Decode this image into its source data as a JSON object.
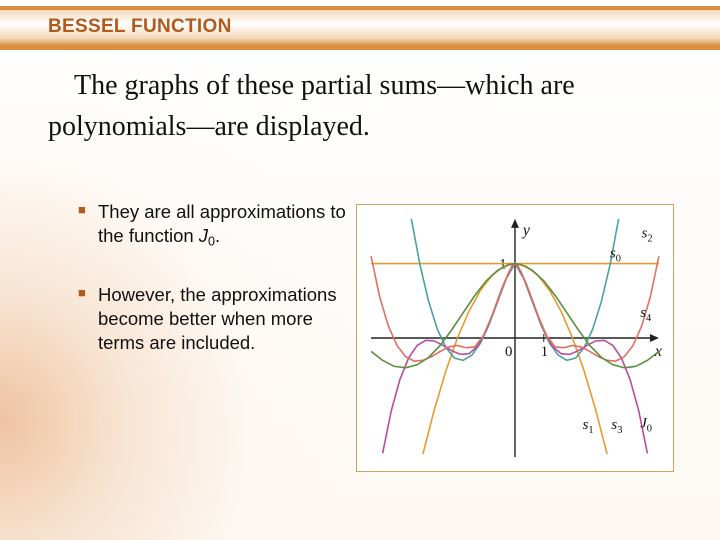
{
  "header": {
    "title": "BESSEL FUNCTION"
  },
  "lead": {
    "text": "The graphs of these partial sums—which are polynomials—are displayed."
  },
  "bullets": [
    {
      "pre": "They are all approximations to the function ",
      "sym": "J",
      "sub": "0",
      "post": "."
    },
    {
      "pre": "However, the approximations become better when more terms are included.",
      "sym": "",
      "sub": "",
      "post": ""
    }
  ],
  "chart": {
    "type": "line",
    "background_color": "#ffffff",
    "frame_border_color": "#d0a060",
    "axis_color": "#222222",
    "xlim": [
      -5,
      5
    ],
    "ylim": [
      -1.6,
      1.6
    ],
    "xtick_labels": [
      {
        "v": 0,
        "label": "0"
      },
      {
        "v": 1,
        "label": "1"
      }
    ],
    "ytick_labels": [
      {
        "v": 1,
        "label": "1"
      }
    ],
    "y_axis_label": "y",
    "x_axis_label": "x",
    "line_width": 1.6,
    "series": [
      {
        "name": "s0",
        "color": "#e69a2f",
        "label_pos": "tr-upper",
        "points": [
          [
            -5,
            1
          ],
          [
            -4,
            1
          ],
          [
            -3,
            1
          ],
          [
            -2,
            1
          ],
          [
            -1,
            1
          ],
          [
            0,
            1
          ],
          [
            1,
            1
          ],
          [
            2,
            1
          ],
          [
            3,
            1
          ],
          [
            4,
            1
          ],
          [
            5,
            1
          ]
        ]
      },
      {
        "name": "s1",
        "color": "#e69a2f",
        "label_pos": "bl",
        "points": [
          [
            -3.2,
            -1.56
          ],
          [
            -2.8,
            -0.96
          ],
          [
            -2.4,
            -0.44
          ],
          [
            -2.0,
            0.0
          ],
          [
            -1.6,
            0.36
          ],
          [
            -1.2,
            0.64
          ],
          [
            -0.8,
            0.84
          ],
          [
            -0.4,
            0.96
          ],
          [
            0,
            1.0
          ],
          [
            0.4,
            0.96
          ],
          [
            0.8,
            0.84
          ],
          [
            1.2,
            0.64
          ],
          [
            1.6,
            0.36
          ],
          [
            2.0,
            0.0
          ],
          [
            2.4,
            -0.44
          ],
          [
            2.8,
            -0.96
          ],
          [
            3.2,
            -1.56
          ]
        ]
      },
      {
        "name": "s2",
        "color": "#4aa0a0",
        "label_pos": "tr",
        "points": [
          [
            -3.6,
            1.6
          ],
          [
            -3.3,
            0.98
          ],
          [
            -3.0,
            0.49
          ],
          [
            -2.7,
            0.12
          ],
          [
            -2.4,
            -0.13
          ],
          [
            -2.1,
            -0.27
          ],
          [
            -1.8,
            -0.3
          ],
          [
            -1.5,
            -0.23
          ],
          [
            -1.2,
            -0.07
          ],
          [
            -0.9,
            0.18
          ],
          [
            -0.6,
            0.49
          ],
          [
            -0.3,
            0.8
          ],
          [
            0,
            1.0
          ],
          [
            0.3,
            0.8
          ],
          [
            0.6,
            0.49
          ],
          [
            0.9,
            0.18
          ],
          [
            1.2,
            -0.07
          ],
          [
            1.5,
            -0.23
          ],
          [
            1.8,
            -0.3
          ],
          [
            2.1,
            -0.27
          ],
          [
            2.4,
            -0.13
          ],
          [
            2.7,
            0.12
          ],
          [
            3.0,
            0.49
          ],
          [
            3.3,
            0.98
          ],
          [
            3.6,
            1.6
          ]
        ]
      },
      {
        "name": "s3",
        "color": "#b94aa0",
        "label_pos": "br-inner",
        "points": [
          [
            -4.6,
            -1.55
          ],
          [
            -4.3,
            -0.98
          ],
          [
            -4.0,
            -0.56
          ],
          [
            -3.7,
            -0.27
          ],
          [
            -3.4,
            -0.1
          ],
          [
            -3.1,
            -0.03
          ],
          [
            -2.8,
            -0.04
          ],
          [
            -2.5,
            -0.1
          ],
          [
            -2.2,
            -0.17
          ],
          [
            -1.9,
            -0.22
          ],
          [
            -1.6,
            -0.21
          ],
          [
            -1.3,
            -0.11
          ],
          [
            -1.0,
            0.1
          ],
          [
            -0.7,
            0.4
          ],
          [
            -0.4,
            0.72
          ],
          [
            -0.1,
            0.97
          ],
          [
            0,
            1.0
          ],
          [
            0.1,
            0.97
          ],
          [
            0.4,
            0.72
          ],
          [
            0.7,
            0.4
          ],
          [
            1.0,
            0.1
          ],
          [
            1.3,
            -0.11
          ],
          [
            1.6,
            -0.21
          ],
          [
            1.9,
            -0.22
          ],
          [
            2.2,
            -0.17
          ],
          [
            2.5,
            -0.1
          ],
          [
            2.8,
            -0.04
          ],
          [
            3.1,
            -0.03
          ],
          [
            3.4,
            -0.1
          ],
          [
            3.7,
            -0.27
          ],
          [
            4.0,
            -0.56
          ],
          [
            4.3,
            -0.98
          ],
          [
            4.6,
            -1.55
          ]
        ]
      },
      {
        "name": "s4",
        "color": "#df6f5f",
        "label_pos": "r-mid",
        "points": [
          [
            -5,
            1.1
          ],
          [
            -4.7,
            0.55
          ],
          [
            -4.4,
            0.16
          ],
          [
            -4.1,
            -0.1
          ],
          [
            -3.8,
            -0.25
          ],
          [
            -3.5,
            -0.31
          ],
          [
            -3.2,
            -0.3
          ],
          [
            -2.9,
            -0.25
          ],
          [
            -2.6,
            -0.18
          ],
          [
            -2.3,
            -0.12
          ],
          [
            -2.0,
            -0.1
          ],
          [
            -1.7,
            -0.13
          ],
          [
            -1.4,
            -0.12
          ],
          [
            -1.1,
            0.03
          ],
          [
            -0.8,
            0.3
          ],
          [
            -0.5,
            0.62
          ],
          [
            -0.2,
            0.9
          ],
          [
            0,
            1.0
          ],
          [
            0.2,
            0.9
          ],
          [
            0.5,
            0.62
          ],
          [
            0.8,
            0.3
          ],
          [
            1.1,
            0.03
          ],
          [
            1.4,
            -0.12
          ],
          [
            1.7,
            -0.13
          ],
          [
            2.0,
            -0.1
          ],
          [
            2.3,
            -0.12
          ],
          [
            2.6,
            -0.18
          ],
          [
            2.9,
            -0.25
          ],
          [
            3.2,
            -0.3
          ],
          [
            3.5,
            -0.31
          ],
          [
            3.8,
            -0.25
          ],
          [
            4.1,
            -0.1
          ],
          [
            4.4,
            0.16
          ],
          [
            4.7,
            0.55
          ],
          [
            5,
            1.1
          ]
        ]
      },
      {
        "name": "J0",
        "color": "#5a8f3f",
        "label_pos": "br",
        "points": [
          [
            -5,
            -0.18
          ],
          [
            -4.6,
            -0.3
          ],
          [
            -4.2,
            -0.38
          ],
          [
            -3.8,
            -0.4
          ],
          [
            -3.4,
            -0.36
          ],
          [
            -3.0,
            -0.26
          ],
          [
            -2.6,
            -0.1
          ],
          [
            -2.2,
            0.11
          ],
          [
            -1.8,
            0.34
          ],
          [
            -1.4,
            0.57
          ],
          [
            -1.0,
            0.77
          ],
          [
            -0.6,
            0.91
          ],
          [
            -0.2,
            0.99
          ],
          [
            0,
            1.0
          ],
          [
            0.2,
            0.99
          ],
          [
            0.6,
            0.91
          ],
          [
            1.0,
            0.77
          ],
          [
            1.4,
            0.57
          ],
          [
            1.8,
            0.34
          ],
          [
            2.2,
            0.11
          ],
          [
            2.6,
            -0.1
          ],
          [
            3.0,
            -0.26
          ],
          [
            3.4,
            -0.36
          ],
          [
            3.8,
            -0.4
          ],
          [
            4.2,
            -0.38
          ],
          [
            4.6,
            -0.3
          ],
          [
            5,
            -0.18
          ]
        ]
      }
    ],
    "series_labels": {
      "s0": {
        "sym": "s",
        "sub": "0"
      },
      "s1": {
        "sym": "s",
        "sub": "1"
      },
      "s2": {
        "sym": "s",
        "sub": "2"
      },
      "s3": {
        "sym": "s",
        "sub": "3"
      },
      "s4": {
        "sym": "s",
        "sub": "4"
      },
      "J0": {
        "sym": "J",
        "sub": "0"
      }
    }
  }
}
